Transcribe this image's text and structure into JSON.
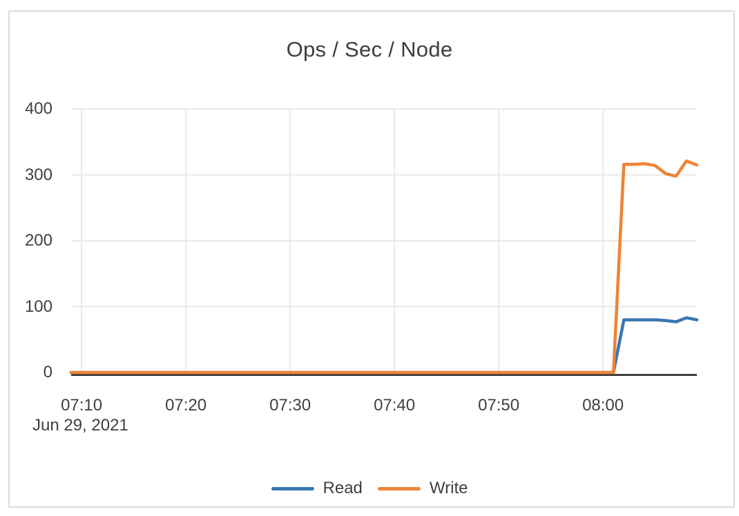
{
  "window": {
    "background": "#ffffff",
    "card_border": "#dcdcdc"
  },
  "colors": {
    "read": "#3a76b0",
    "write": "#ee8435",
    "grid": "#e9e9e9",
    "axis": "#3d3d3d",
    "text": "#3f3f3f"
  },
  "legend": {
    "items": [
      {
        "label": "Read",
        "color": "#3a76b0"
      },
      {
        "label": "Write",
        "color": "#ee8435"
      }
    ]
  },
  "chart_data": {
    "type": "line",
    "title": "Ops / Sec / Node",
    "grid": true,
    "legend_position": "bottom",
    "x_axis": {
      "tick_labels": [
        "07:10",
        "07:20",
        "07:30",
        "07:40",
        "07:50",
        "08:00"
      ],
      "date_label": "Jun 29, 2021",
      "range": [
        "07:09",
        "08:09"
      ]
    },
    "y_axis": {
      "tick_labels": [
        "0",
        "100",
        "200",
        "300",
        "400"
      ],
      "tick_values": [
        0,
        100,
        200,
        300,
        400
      ],
      "range": [
        0,
        400
      ]
    },
    "x": [
      "07:09",
      "07:10",
      "07:11",
      "07:12",
      "07:13",
      "07:14",
      "07:15",
      "07:16",
      "07:17",
      "07:18",
      "07:19",
      "07:20",
      "07:21",
      "07:22",
      "07:23",
      "07:24",
      "07:25",
      "07:26",
      "07:27",
      "07:28",
      "07:29",
      "07:30",
      "07:31",
      "07:32",
      "07:33",
      "07:34",
      "07:35",
      "07:36",
      "07:37",
      "07:38",
      "07:39",
      "07:40",
      "07:41",
      "07:42",
      "07:43",
      "07:44",
      "07:45",
      "07:46",
      "07:47",
      "07:48",
      "07:49",
      "07:50",
      "07:51",
      "07:52",
      "07:53",
      "07:54",
      "07:55",
      "07:56",
      "07:57",
      "07:58",
      "07:59",
      "08:00",
      "08:01",
      "08:02",
      "08:03",
      "08:04",
      "08:05",
      "08:06",
      "08:07",
      "08:08",
      "08:09"
    ],
    "series": [
      {
        "name": "Read",
        "color": "#3a76b0",
        "values": [
          0,
          0,
          0,
          0,
          0,
          0,
          0,
          0,
          0,
          0,
          0,
          0,
          0,
          0,
          0,
          0,
          0,
          0,
          0,
          0,
          0,
          0,
          0,
          0,
          0,
          0,
          0,
          0,
          0,
          0,
          0,
          0,
          0,
          0,
          0,
          0,
          0,
          0,
          0,
          0,
          0,
          0,
          0,
          0,
          0,
          0,
          0,
          0,
          0,
          0,
          0,
          0,
          0,
          80,
          80,
          80,
          80,
          79,
          77,
          83,
          80
        ]
      },
      {
        "name": "Write",
        "color": "#ee8435",
        "values": [
          0,
          0,
          0,
          0,
          0,
          0,
          0,
          0,
          0,
          0,
          0,
          0,
          0,
          0,
          0,
          0,
          0,
          0,
          0,
          0,
          0,
          0,
          0,
          0,
          0,
          0,
          0,
          0,
          0,
          0,
          0,
          0,
          0,
          0,
          0,
          0,
          0,
          0,
          0,
          0,
          0,
          0,
          0,
          0,
          0,
          0,
          0,
          0,
          0,
          0,
          0,
          0,
          0,
          316,
          316,
          317,
          314,
          302,
          298,
          321,
          315
        ]
      }
    ]
  }
}
